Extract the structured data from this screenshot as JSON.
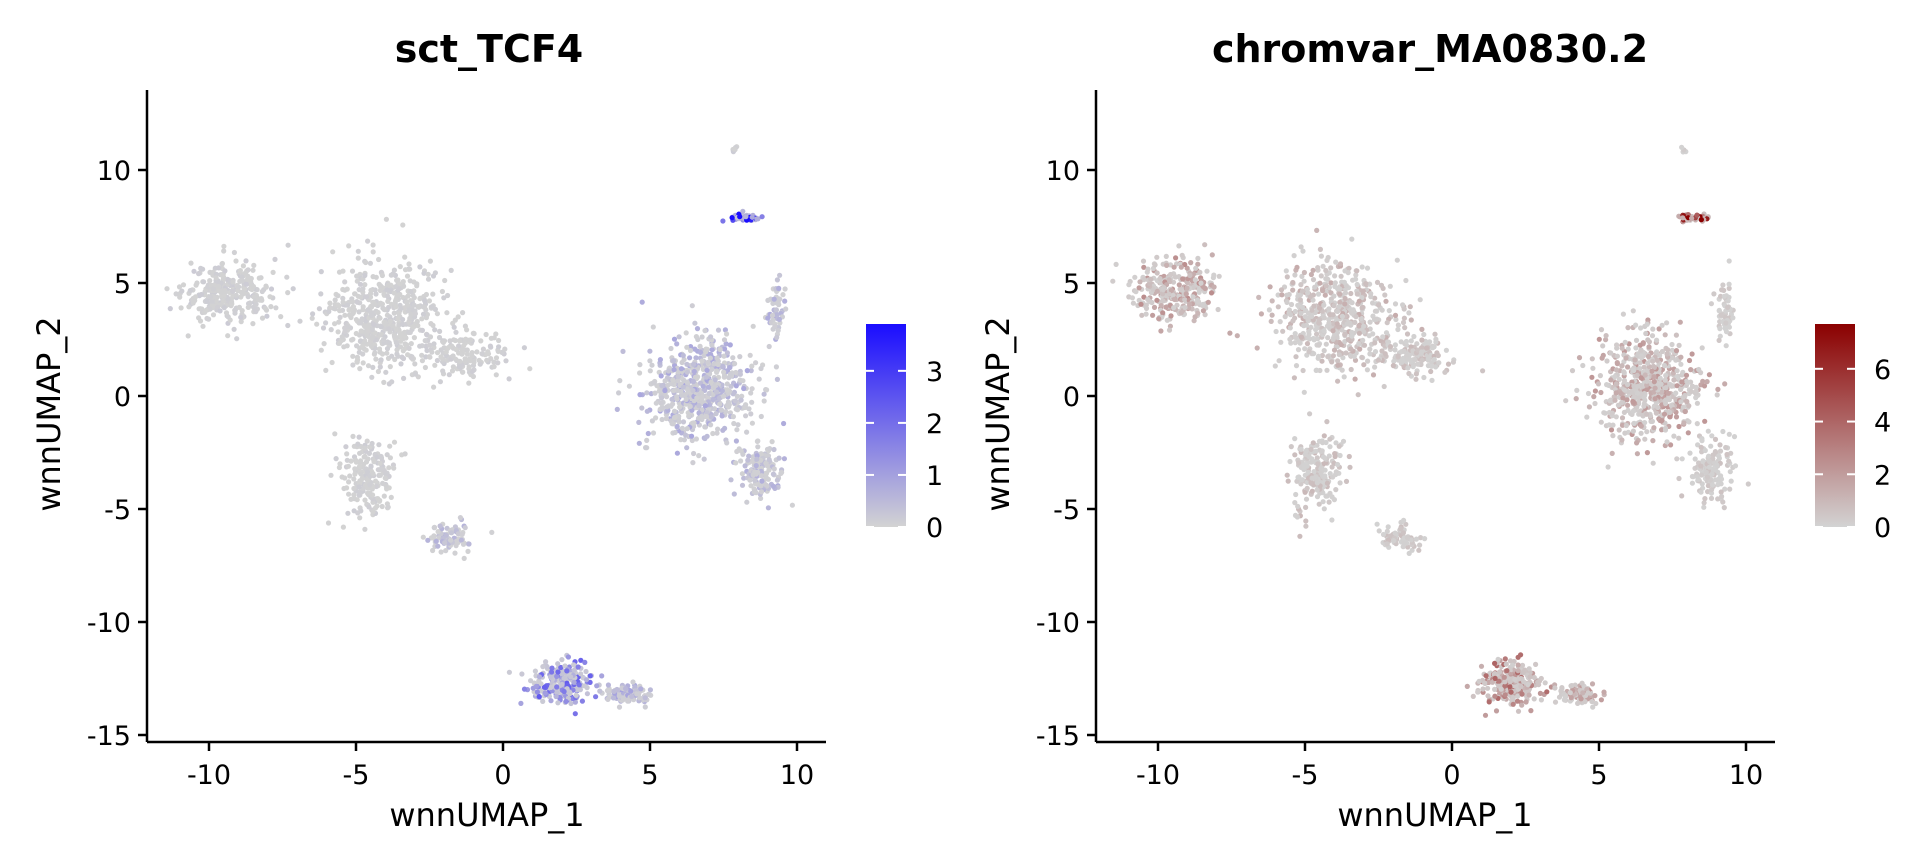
{
  "figure": {
    "layout": "two side-by-side UMAP feature plots"
  },
  "chart_data": [
    {
      "type": "scatter",
      "title": "sct_TCF4",
      "xlabel": "wnnUMAP_1",
      "ylabel": "wnnUMAP_2",
      "xlim": [
        -12,
        11
      ],
      "ylim": [
        -15.3,
        13.5
      ],
      "xticks": [
        -10,
        -5,
        0,
        5,
        10
      ],
      "yticks": [
        -15,
        -10,
        -5,
        0,
        5,
        10
      ],
      "xtick_labels": [
        "-10",
        "-5",
        "0",
        "5",
        "10"
      ],
      "ytick_labels": [
        "-15",
        "-10",
        "-5",
        "0",
        "5",
        "10"
      ],
      "colorbar": {
        "low_color": "#d3d3d3",
        "high_color": "#1a0dff",
        "min": 0,
        "max": 3.9,
        "ticks": [
          0,
          1,
          2,
          3
        ],
        "tick_labels": [
          "0",
          "1",
          "2",
          "3"
        ]
      },
      "clusters": [
        {
          "name": "left-lobe",
          "cx": -9.4,
          "cy": 4.6,
          "sx": 1.0,
          "sy": 0.9,
          "n": 300,
          "level": 0.1
        },
        {
          "name": "center-mass",
          "cx": -4.0,
          "cy": 3.5,
          "sx": 1.4,
          "sy": 1.6,
          "n": 550,
          "level": 0.08
        },
        {
          "name": "center-right-arm",
          "cx": -1.3,
          "cy": 1.8,
          "sx": 0.9,
          "sy": 0.7,
          "n": 150,
          "level": 0.08
        },
        {
          "name": "lower-stem",
          "cx": -4.6,
          "cy": -3.5,
          "sx": 0.6,
          "sy": 1.2,
          "n": 200,
          "level": 0.08
        },
        {
          "name": "small-blob",
          "cx": -1.8,
          "cy": -6.3,
          "sx": 0.5,
          "sy": 0.5,
          "n": 80,
          "level": 0.4
        },
        {
          "name": "right-main",
          "cx": 6.7,
          "cy": 0.3,
          "sx": 1.2,
          "sy": 1.5,
          "n": 650,
          "level": 0.55
        },
        {
          "name": "right-tail",
          "cx": 8.8,
          "cy": -3.3,
          "sx": 0.5,
          "sy": 0.9,
          "n": 150,
          "level": 0.5
        },
        {
          "name": "right-stalk",
          "cx": 9.3,
          "cy": 3.8,
          "sx": 0.2,
          "sy": 0.8,
          "n": 60,
          "level": 0.5
        },
        {
          "name": "top-cluster",
          "cx": 8.2,
          "cy": 7.9,
          "sx": 0.35,
          "sy": 0.12,
          "n": 60,
          "level": 3.6
        },
        {
          "name": "top-tiny",
          "cx": 7.9,
          "cy": 10.9,
          "sx": 0.05,
          "sy": 0.1,
          "n": 6,
          "level": 0.1
        },
        {
          "name": "bottom-left",
          "cx": 2.0,
          "cy": -12.7,
          "sx": 0.7,
          "sy": 0.6,
          "n": 250,
          "level": 1.5
        },
        {
          "name": "bottom-right",
          "cx": 4.3,
          "cy": -13.2,
          "sx": 0.5,
          "sy": 0.3,
          "n": 100,
          "level": 0.6
        }
      ]
    },
    {
      "type": "scatter",
      "title": "chromvar_MA0830.2",
      "xlabel": "wnnUMAP_1",
      "ylabel": "wnnUMAP_2",
      "xlim": [
        -12,
        11
      ],
      "ylim": [
        -15.3,
        13.5
      ],
      "xticks": [
        -10,
        -5,
        0,
        5,
        10
      ],
      "yticks": [
        -15,
        -10,
        -5,
        0,
        5,
        10
      ],
      "xtick_labels": [
        "-10",
        "-5",
        "0",
        "5",
        "10"
      ],
      "ytick_labels": [
        "-15",
        "-10",
        "-5",
        "0",
        "5",
        "10"
      ],
      "colorbar": {
        "low_color": "#d3d3d3",
        "high_color": "#8b0000",
        "min": 0,
        "max": 7.7,
        "ticks": [
          0,
          2,
          4,
          6
        ],
        "tick_labels": [
          "0",
          "2",
          "4",
          "6"
        ]
      },
      "clusters": [
        {
          "name": "left-lobe",
          "cx": -9.4,
          "cy": 4.6,
          "sx": 1.0,
          "sy": 0.9,
          "n": 300,
          "level": 1.6
        },
        {
          "name": "center-mass",
          "cx": -4.0,
          "cy": 3.5,
          "sx": 1.4,
          "sy": 1.6,
          "n": 550,
          "level": 0.9
        },
        {
          "name": "center-right-arm",
          "cx": -1.3,
          "cy": 1.8,
          "sx": 0.9,
          "sy": 0.7,
          "n": 150,
          "level": 0.6
        },
        {
          "name": "lower-stem",
          "cx": -4.6,
          "cy": -3.5,
          "sx": 0.6,
          "sy": 1.2,
          "n": 200,
          "level": 0.6
        },
        {
          "name": "small-blob",
          "cx": -1.8,
          "cy": -6.3,
          "sx": 0.5,
          "sy": 0.5,
          "n": 80,
          "level": 0.5
        },
        {
          "name": "right-main",
          "cx": 6.7,
          "cy": 0.3,
          "sx": 1.2,
          "sy": 1.5,
          "n": 650,
          "level": 1.4
        },
        {
          "name": "right-tail",
          "cx": 8.8,
          "cy": -3.3,
          "sx": 0.5,
          "sy": 0.9,
          "n": 150,
          "level": 0.4
        },
        {
          "name": "right-stalk",
          "cx": 9.3,
          "cy": 3.8,
          "sx": 0.2,
          "sy": 0.8,
          "n": 60,
          "level": 0.3
        },
        {
          "name": "top-cluster",
          "cx": 8.2,
          "cy": 7.9,
          "sx": 0.35,
          "sy": 0.12,
          "n": 60,
          "level": 6.2
        },
        {
          "name": "top-tiny",
          "cx": 7.9,
          "cy": 10.9,
          "sx": 0.05,
          "sy": 0.1,
          "n": 6,
          "level": 0.3
        },
        {
          "name": "bottom-left",
          "cx": 2.0,
          "cy": -12.7,
          "sx": 0.7,
          "sy": 0.6,
          "n": 250,
          "level": 2.6
        },
        {
          "name": "bottom-right",
          "cx": 4.3,
          "cy": -13.2,
          "sx": 0.5,
          "sy": 0.3,
          "n": 100,
          "level": 1.6
        }
      ]
    }
  ]
}
